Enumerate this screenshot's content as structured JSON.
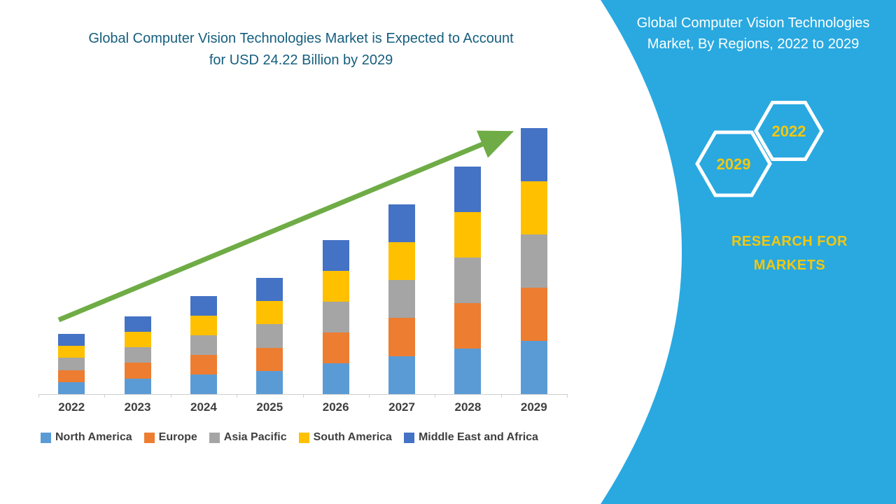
{
  "left_panel": {
    "title_line1": "Global Computer Vision Technologies Market is Expected to Account",
    "title_line2": "for USD 24.22 Billion by 2029"
  },
  "chart_data": {
    "type": "bar",
    "stacked": true,
    "title": "Global Computer Vision Technologies Market is Expected to Account for USD 24.22 Billion by 2029",
    "xlabel": "",
    "ylabel": "",
    "ylim": [
      0,
      24.22
    ],
    "grid": false,
    "legend_position": "bottom",
    "categories": [
      "2022",
      "2023",
      "2024",
      "2025",
      "2026",
      "2027",
      "2028",
      "2029"
    ],
    "series": [
      {
        "name": "North America",
        "color": "#5B9BD5",
        "values": [
          1.1,
          1.42,
          1.78,
          2.12,
          2.8,
          3.46,
          4.14,
          4.85
        ]
      },
      {
        "name": "Europe",
        "color": "#ED7D31",
        "values": [
          1.1,
          1.42,
          1.78,
          2.12,
          2.8,
          3.46,
          4.14,
          4.85
        ]
      },
      {
        "name": "Asia Pacific",
        "color": "#A5A5A5",
        "values": [
          1.1,
          1.42,
          1.78,
          2.12,
          2.8,
          3.46,
          4.14,
          4.84
        ]
      },
      {
        "name": "South America",
        "color": "#FFC000",
        "values": [
          1.1,
          1.42,
          1.78,
          2.12,
          2.8,
          3.46,
          4.14,
          4.84
        ]
      },
      {
        "name": "Middle East and Africa",
        "color": "#4472C4",
        "values": [
          1.1,
          1.42,
          1.78,
          2.12,
          2.8,
          3.46,
          4.14,
          4.84
        ]
      }
    ],
    "totals": [
      5.5,
      7.1,
      8.9,
      10.6,
      14.0,
      17.3,
      20.7,
      24.22
    ],
    "annotations": [
      "upward green trend arrow from 2022 to 2029"
    ]
  },
  "right_panel": {
    "title_line1": "Global Computer Vision Technologies",
    "title_line2": "Market, By Regions, 2022 to 2029",
    "hexagons": [
      {
        "label": "2029"
      },
      {
        "label": "2022"
      }
    ],
    "brand_line1": "RESEARCH FOR",
    "brand_line2": "MARKETS"
  },
  "colors": {
    "title_text": "#155E7E",
    "panel_background": "#29A9E0",
    "accent_yellow": "#F2C811",
    "trend_arrow_green": "#6FAC46",
    "axis_text": "#3F3F3F"
  }
}
